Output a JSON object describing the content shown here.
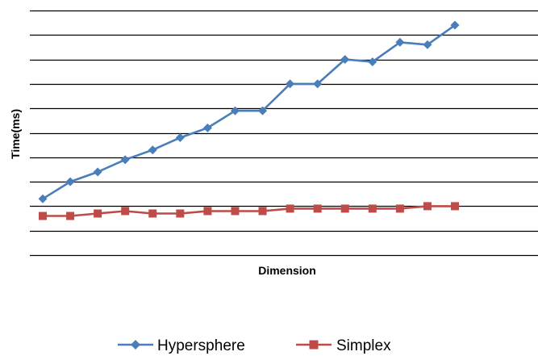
{
  "chart_data": {
    "type": "line",
    "title": "",
    "xlabel": "Dimension",
    "ylabel": "Time(ms)",
    "x": [
      1,
      2,
      3,
      4,
      5,
      6,
      7,
      8,
      9,
      10,
      11,
      12,
      13,
      14,
      15,
      16
    ],
    "ylim": [
      0,
      10
    ],
    "grid": true,
    "legend_position": "bottom",
    "series": [
      {
        "name": "Hypersphere",
        "color": "#4a7ebb",
        "marker": "diamond",
        "values": [
          2.3,
          3.0,
          3.4,
          3.9,
          4.3,
          4.8,
          5.2,
          5.9,
          5.9,
          7.0,
          7.0,
          8.0,
          7.9,
          8.7,
          8.6,
          9.4
        ]
      },
      {
        "name": "Simplex",
        "color": "#be4b48",
        "marker": "square",
        "values": [
          1.6,
          1.6,
          1.7,
          1.8,
          1.7,
          1.7,
          1.8,
          1.8,
          1.8,
          1.9,
          1.9,
          1.9,
          1.9,
          1.9,
          2.0,
          2.0
        ]
      }
    ]
  }
}
